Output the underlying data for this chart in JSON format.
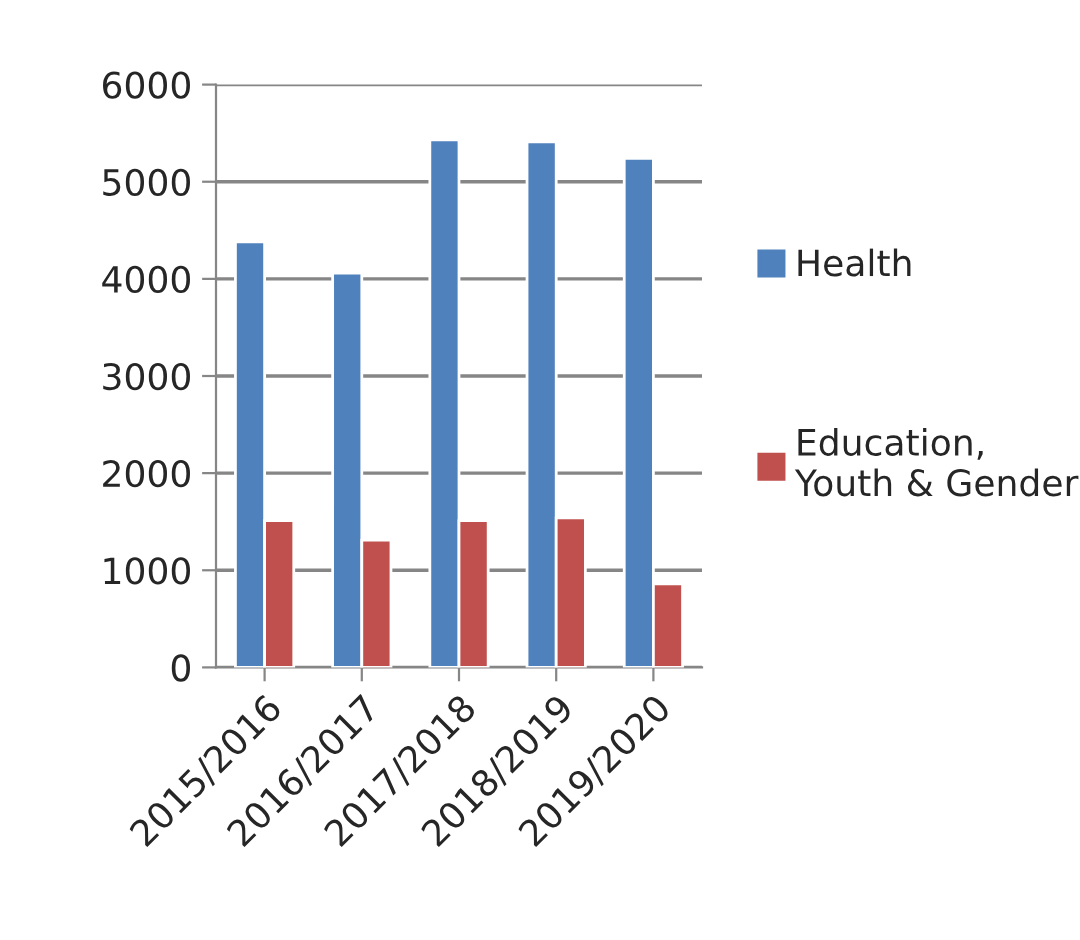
{
  "chart_data": {
    "type": "bar",
    "categories": [
      "2015/2016",
      "2016/2017",
      "2017/2018",
      "2018/2019",
      "2019/2020"
    ],
    "series": [
      {
        "name": "Health",
        "color": "#4f81bd",
        "values": [
          4380,
          4060,
          5430,
          5410,
          5240
        ]
      },
      {
        "name": "Education, Youth & Gender",
        "color": "#c0504d",
        "values": [
          1510,
          1310,
          1510,
          1540,
          860
        ]
      }
    ],
    "ylim": [
      0,
      6000
    ],
    "yticks": [
      0,
      1000,
      2000,
      3000,
      4000,
      5000,
      6000
    ],
    "grid": "y",
    "legend": "right"
  }
}
